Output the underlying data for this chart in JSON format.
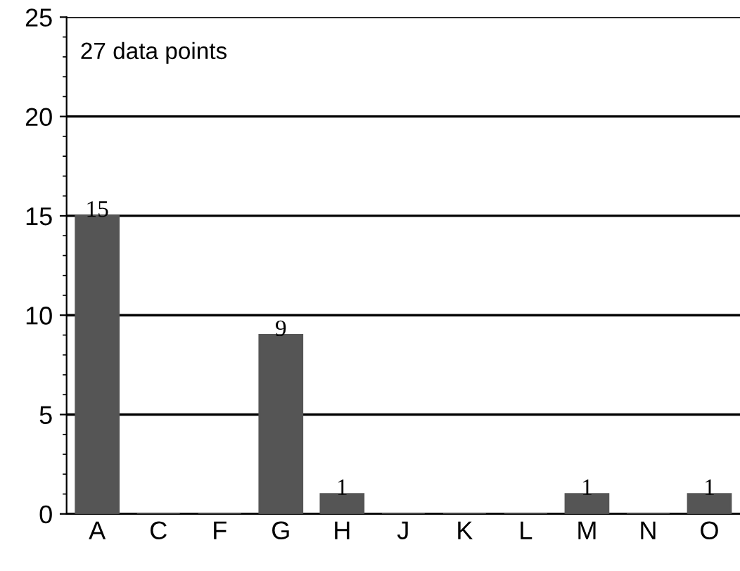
{
  "chart_data": {
    "type": "bar",
    "categories": [
      "A",
      "C",
      "F",
      "G",
      "H",
      "J",
      "K",
      "L",
      "M",
      "N",
      "O"
    ],
    "values": [
      15,
      0,
      0,
      9,
      1,
      0,
      0,
      0,
      1,
      0,
      1
    ],
    "value_labels": [
      "15",
      null,
      null,
      "9",
      "1",
      null,
      null,
      null,
      "1",
      null,
      "1"
    ],
    "color": "#555555",
    "ylim": [
      0,
      25
    ],
    "yticks": [
      0,
      5,
      10,
      15,
      20,
      25
    ],
    "grid": "y",
    "annotations": [
      "27 data points"
    ]
  }
}
